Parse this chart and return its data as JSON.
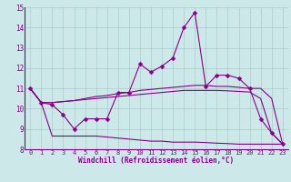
{
  "x": [
    0,
    1,
    2,
    3,
    4,
    5,
    6,
    7,
    8,
    9,
    10,
    11,
    12,
    13,
    14,
    15,
    16,
    17,
    18,
    19,
    20,
    21,
    22,
    23
  ],
  "line1": [
    11.0,
    10.3,
    10.2,
    9.7,
    9.0,
    9.5,
    9.5,
    9.5,
    10.8,
    10.8,
    12.2,
    11.8,
    12.1,
    12.5,
    14.0,
    14.75,
    11.1,
    11.65,
    11.65,
    11.5,
    11.0,
    9.5,
    8.8,
    8.25
  ],
  "line2": [
    11.0,
    10.3,
    10.3,
    10.35,
    10.4,
    10.5,
    10.6,
    10.65,
    10.75,
    10.8,
    10.9,
    10.95,
    11.0,
    11.05,
    11.1,
    11.15,
    11.15,
    11.1,
    11.1,
    11.05,
    11.0,
    11.0,
    10.5,
    8.25
  ],
  "line3": [
    11.0,
    10.3,
    10.3,
    10.35,
    10.4,
    10.45,
    10.5,
    10.55,
    10.6,
    10.65,
    10.7,
    10.75,
    10.8,
    10.85,
    10.9,
    10.9,
    10.9,
    10.9,
    10.88,
    10.85,
    10.82,
    10.5,
    8.8,
    8.25
  ],
  "line4": [
    11.0,
    10.3,
    8.65,
    8.65,
    8.65,
    8.65,
    8.65,
    8.6,
    8.55,
    8.5,
    8.45,
    8.4,
    8.4,
    8.35,
    8.35,
    8.35,
    8.33,
    8.3,
    8.28,
    8.25,
    8.25,
    8.25,
    8.25,
    8.25
  ],
  "ylim": [
    8,
    15
  ],
  "xlim": [
    -0.5,
    23.5
  ],
  "yticks": [
    8,
    9,
    10,
    11,
    12,
    13,
    14,
    15
  ],
  "xticks": [
    0,
    1,
    2,
    3,
    4,
    5,
    6,
    7,
    8,
    9,
    10,
    11,
    12,
    13,
    14,
    15,
    16,
    17,
    18,
    19,
    20,
    21,
    22,
    23
  ],
  "xlabel": "Windchill (Refroidissement éolien,°C)",
  "line_color": "#880088",
  "bg_color": "#cce8e8",
  "grid_color": "#aacccc",
  "marker": "D",
  "marker_size": 2.5,
  "tick_fontsize": 5.0,
  "xlabel_fontsize": 5.5
}
